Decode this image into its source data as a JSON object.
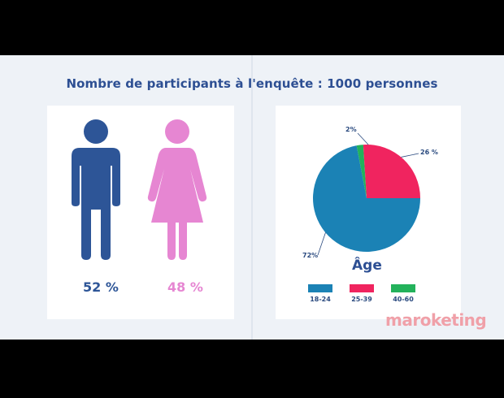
{
  "headline": "Nombre de participants à l'enquête : 1000 personnes",
  "gender": {
    "male": {
      "icon": "male-person-icon",
      "percent": "52 %",
      "value": 52,
      "color": "#2d5597"
    },
    "female": {
      "icon": "female-person-icon",
      "percent": "48 %",
      "value": 48,
      "color": "#e686d2"
    }
  },
  "chart_data": [
    {
      "type": "pictogram",
      "categories": [
        "male",
        "female"
      ],
      "values": [
        52,
        48
      ],
      "labels": [
        "52 %",
        "48 %"
      ]
    },
    {
      "type": "pie",
      "title": "Âge",
      "categories": [
        "18-24",
        "25-39",
        "40-60"
      ],
      "values": [
        72,
        26,
        2
      ],
      "labels": [
        "72%",
        "26 %",
        "2%"
      ],
      "colors": [
        "#1b82b5",
        "#f0245f",
        "#23b25b"
      ],
      "legend": "bottom"
    }
  ],
  "brand": "maroketing"
}
